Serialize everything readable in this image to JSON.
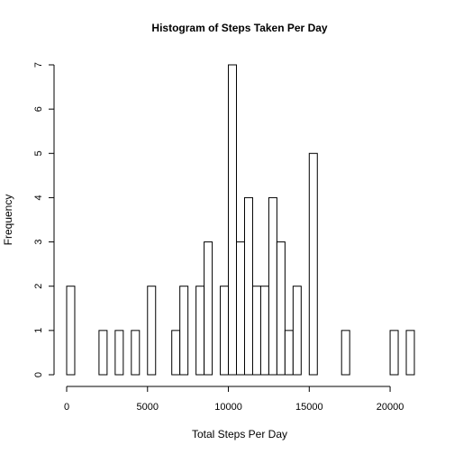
{
  "chart_data": {
    "type": "bar",
    "title": "Histogram of Steps Taken Per Day",
    "xlabel": "Total Steps Per Day",
    "ylabel": "Frequency",
    "bin_width": 500,
    "bin_starts": [
      0,
      500,
      1000,
      1500,
      2000,
      2500,
      3000,
      3500,
      4000,
      4500,
      5000,
      5500,
      6000,
      6500,
      7000,
      7500,
      8000,
      8500,
      9000,
      9500,
      10000,
      10500,
      11000,
      11500,
      12000,
      12500,
      13000,
      13500,
      14000,
      14500,
      15000,
      15500,
      16000,
      16500,
      17000,
      17500,
      18000,
      18500,
      19000,
      19500,
      20000,
      20500,
      21000
    ],
    "values": [
      2,
      0,
      0,
      0,
      1,
      0,
      1,
      0,
      1,
      0,
      2,
      0,
      0,
      1,
      2,
      0,
      2,
      3,
      0,
      2,
      7,
      3,
      4,
      2,
      2,
      4,
      3,
      1,
      2,
      0,
      5,
      0,
      0,
      0,
      1,
      0,
      0,
      0,
      0,
      0,
      1,
      0,
      1
    ],
    "xlim": [
      0,
      21500
    ],
    "ylim": [
      0,
      7
    ],
    "x_ticks": [
      0,
      5000,
      10000,
      15000,
      20000
    ],
    "x_tick_labels": [
      "0",
      "5000",
      "10000",
      "15000",
      "20000"
    ],
    "y_ticks": [
      0,
      1,
      2,
      3,
      4,
      5,
      6,
      7
    ],
    "y_tick_labels": [
      "0",
      "1",
      "2",
      "3",
      "4",
      "5",
      "6",
      "7"
    ],
    "grid": false
  }
}
